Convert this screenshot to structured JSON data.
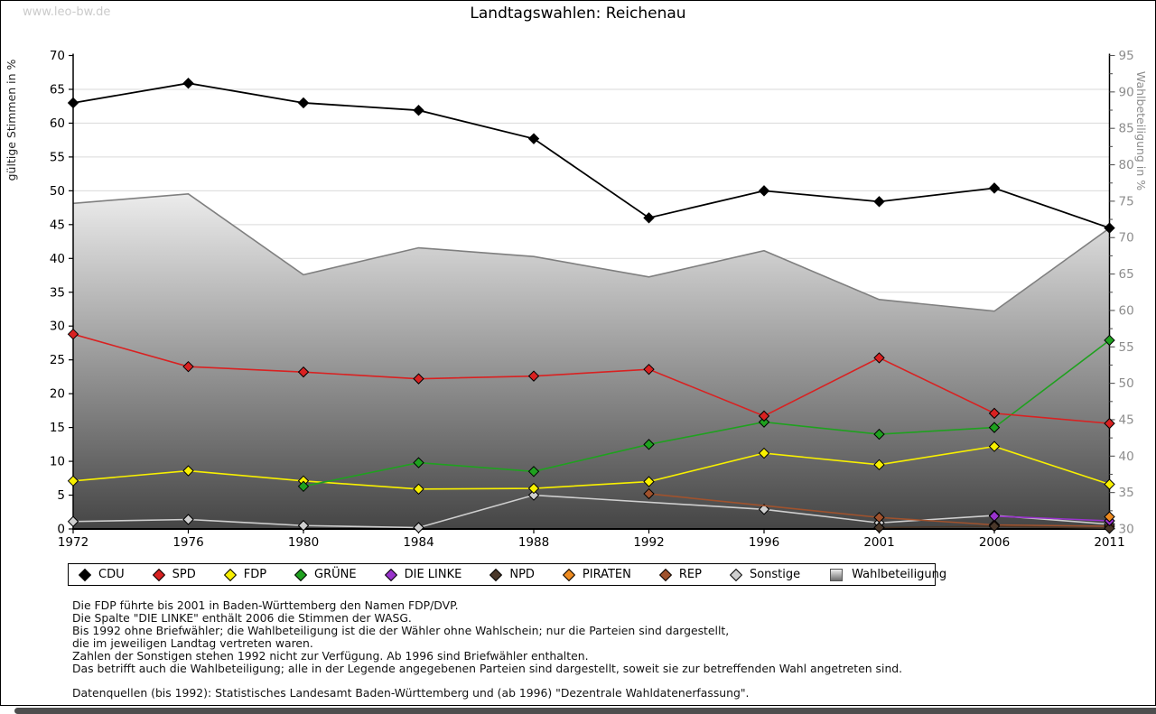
{
  "watermark": "www.leo-bw.de",
  "title": "Landtagswahlen: Reichenau",
  "chart_data": {
    "type": "line",
    "title": "Landtagswahlen: Reichenau",
    "categories": [
      "1972",
      "1976",
      "1980",
      "1984",
      "1988",
      "1992",
      "1996",
      "2001",
      "2006",
      "2011"
    ],
    "left_axis": {
      "label": "gültige Stimmen in %",
      "min": 0,
      "max": 70,
      "tick_step": 5
    },
    "right_axis": {
      "label": "Wahlbeteiligung in %",
      "min": 30,
      "max": 95,
      "tick_step": 5,
      "minor_step": 2.5
    },
    "grid": true,
    "legend_position": "bottom",
    "series": [
      {
        "name": "Wahlbeteiligung",
        "type": "area",
        "axis": "right",
        "stroke": "#7f7f7f",
        "fill_top": "#f0f0f0",
        "fill_bottom": "#454545",
        "values": [
          74.7,
          76.0,
          64.9,
          68.6,
          67.4,
          64.6,
          68.2,
          61.5,
          59.9,
          71.3
        ]
      },
      {
        "name": "Sonstige",
        "type": "line",
        "axis": "left",
        "color": "#cfcfcf",
        "values": [
          1.1,
          1.4,
          0.5,
          0.2,
          5.0,
          null,
          2.9,
          0.9,
          2.0,
          0.7
        ]
      },
      {
        "name": "REP",
        "type": "line",
        "axis": "left",
        "color": "#a0522d",
        "values": [
          null,
          null,
          null,
          null,
          null,
          5.2,
          null,
          1.7,
          0.6,
          0.4
        ]
      },
      {
        "name": "NPD",
        "type": "line",
        "axis": "left",
        "color": "#4a382a",
        "values": [
          null,
          null,
          null,
          null,
          null,
          null,
          null,
          0.2,
          0.4,
          0.1
        ]
      },
      {
        "name": "DIE LINKE",
        "type": "line",
        "axis": "left",
        "color": "#9933cc",
        "values": [
          null,
          null,
          null,
          null,
          null,
          null,
          null,
          null,
          1.9,
          1.2
        ]
      },
      {
        "name": "PIRATEN",
        "type": "line",
        "axis": "left",
        "color": "#ee8b20",
        "values": [
          null,
          null,
          null,
          null,
          null,
          null,
          null,
          null,
          null,
          1.8
        ]
      },
      {
        "name": "FDP",
        "type": "line",
        "axis": "left",
        "color": "#f8f000",
        "values": [
          7.1,
          8.6,
          7.1,
          5.9,
          6.0,
          7.0,
          11.2,
          9.5,
          12.2,
          6.6
        ]
      },
      {
        "name": "GRÜNE",
        "type": "line",
        "axis": "left",
        "color": "#1fa11f",
        "values": [
          null,
          null,
          6.3,
          9.8,
          8.5,
          12.5,
          15.8,
          14.0,
          15.0,
          27.9
        ]
      },
      {
        "name": "SPD",
        "type": "line",
        "axis": "left",
        "color": "#d92121",
        "values": [
          28.8,
          24.0,
          23.2,
          22.2,
          22.6,
          23.6,
          16.7,
          25.3,
          17.1,
          15.6
        ]
      },
      {
        "name": "CDU",
        "type": "line",
        "axis": "left",
        "color": "#000000",
        "values": [
          63.0,
          65.9,
          63.0,
          61.9,
          57.7,
          46.0,
          50.0,
          48.4,
          50.4,
          44.5
        ]
      }
    ]
  },
  "legend": {
    "items": [
      {
        "label": "CDU",
        "shape": "diamond",
        "color": "#000000"
      },
      {
        "label": "SPD",
        "shape": "diamond",
        "color": "#d92121"
      },
      {
        "label": "FDP",
        "shape": "diamond",
        "color": "#f8f000"
      },
      {
        "label": "GRÜNE",
        "shape": "diamond",
        "color": "#1fa11f"
      },
      {
        "label": "DIE LINKE",
        "shape": "diamond",
        "color": "#9933cc"
      },
      {
        "label": "NPD",
        "shape": "diamond",
        "color": "#4a382a"
      },
      {
        "label": "PIRATEN",
        "shape": "diamond",
        "color": "#ee8b20"
      },
      {
        "label": "REP",
        "shape": "diamond",
        "color": "#a0522d"
      },
      {
        "label": "Sonstige",
        "shape": "diamond",
        "color": "#cfcfcf"
      },
      {
        "label": "Wahlbeteiligung",
        "shape": "square",
        "color": "#bdbdbd"
      }
    ]
  },
  "notes": [
    "Die FDP führte bis 2001 in Baden-Württemberg den Namen FDP/DVP.",
    "Die Spalte \"DIE LINKE\" enthält 2006 die Stimmen der WASG.",
    "Bis 1992 ohne Briefwähler; die Wahlbeteiligung ist die der Wähler ohne Wahlschein; nur die Parteien sind dargestellt,",
    "die im jeweiligen Landtag vertreten waren.",
    "Zahlen der Sonstigen stehen 1992 nicht zur Verfügung. Ab 1996 sind Briefwähler enthalten.",
    "Das betrifft auch die Wahlbeteiligung; alle in der Legende angegebenen Parteien sind dargestellt, soweit sie zur betreffenden Wahl angetreten sind.",
    "",
    "Datenquellen (bis 1992): Statistisches Landesamt Baden-Württemberg und (ab 1996) \"Dezentrale Wahldatenerfassung\"."
  ]
}
